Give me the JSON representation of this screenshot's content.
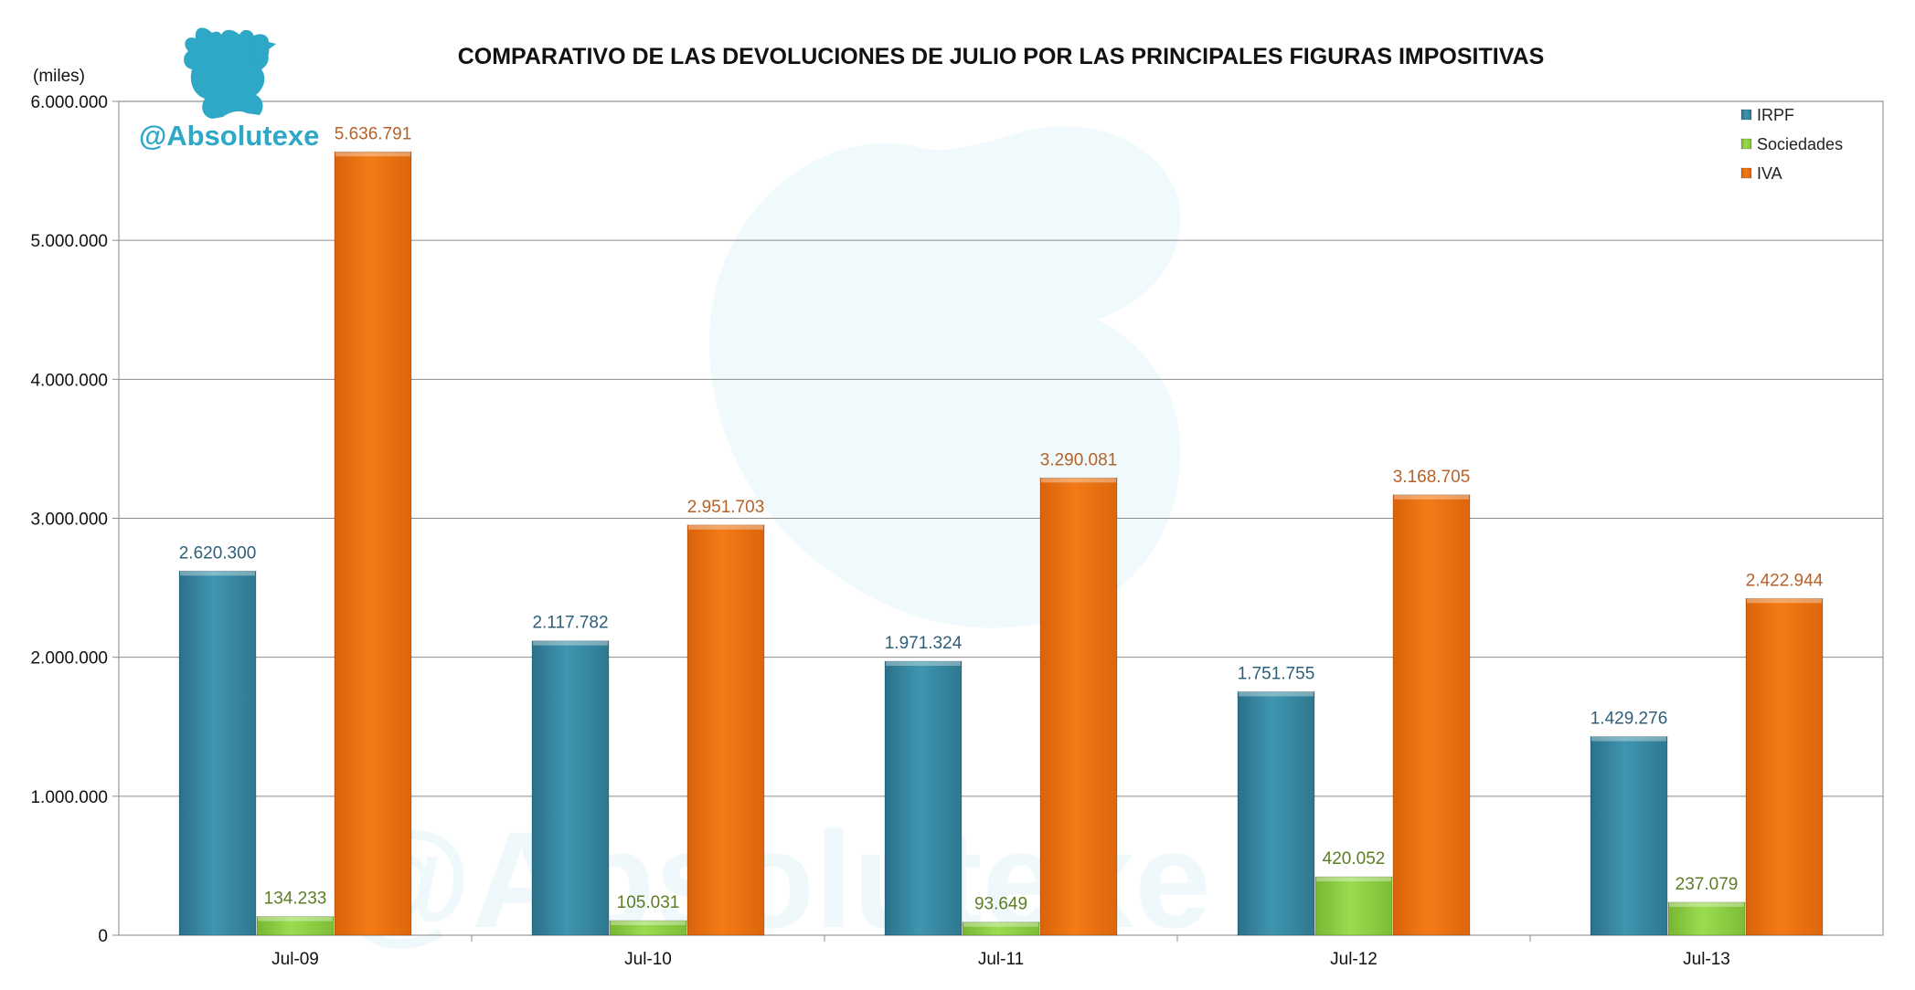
{
  "header": {
    "unit_label": "(miles)",
    "brand_text": "@Absolutexe",
    "watermark_text": "@Absolutexe"
  },
  "colors": {
    "IRPF": "#3a8fa8",
    "Sociedades": "#8fd443",
    "IVA": "#f07412",
    "IRPF_label": "#2e5f78",
    "Sociedades_label": "#5c7d25",
    "IVA_label": "#b5622a",
    "brand": "#2fa7c6"
  },
  "chart_data": {
    "type": "bar",
    "title": "COMPARATIVO DE LAS DEVOLUCIONES DE JULIO POR LAS PRINCIPALES FIGURAS IMPOSITIVAS",
    "categories": [
      "Jul-09",
      "Jul-10",
      "Jul-11",
      "Jul-12",
      "Jul-13"
    ],
    "series": [
      {
        "name": "IRPF",
        "values": [
          2620300,
          2117782,
          1971324,
          1751755,
          1429276
        ],
        "labels": [
          "2.620.300",
          "2.117.782",
          "1.971.324",
          "1.751.755",
          "1.429.276"
        ]
      },
      {
        "name": "Sociedades",
        "values": [
          134233,
          105031,
          93649,
          420052,
          237079
        ],
        "labels": [
          "134.233",
          "105.031",
          "93.649",
          "420.052",
          "237.079"
        ]
      },
      {
        "name": "IVA",
        "values": [
          5636791,
          2951703,
          3290081,
          3168705,
          2422944
        ],
        "labels": [
          "5.636.791",
          "2.951.703",
          "3.290.081",
          "3.168.705",
          "2.422.944"
        ]
      }
    ],
    "ylim": [
      0,
      6000000
    ],
    "yticks": [
      0,
      1000000,
      2000000,
      3000000,
      4000000,
      5000000,
      6000000
    ],
    "ytick_labels": [
      "0",
      "1.000.000",
      "2.000.000",
      "3.000.000",
      "4.000.000",
      "5.000.000",
      "6.000.000"
    ],
    "grid": true,
    "legend_position": "top-right"
  }
}
